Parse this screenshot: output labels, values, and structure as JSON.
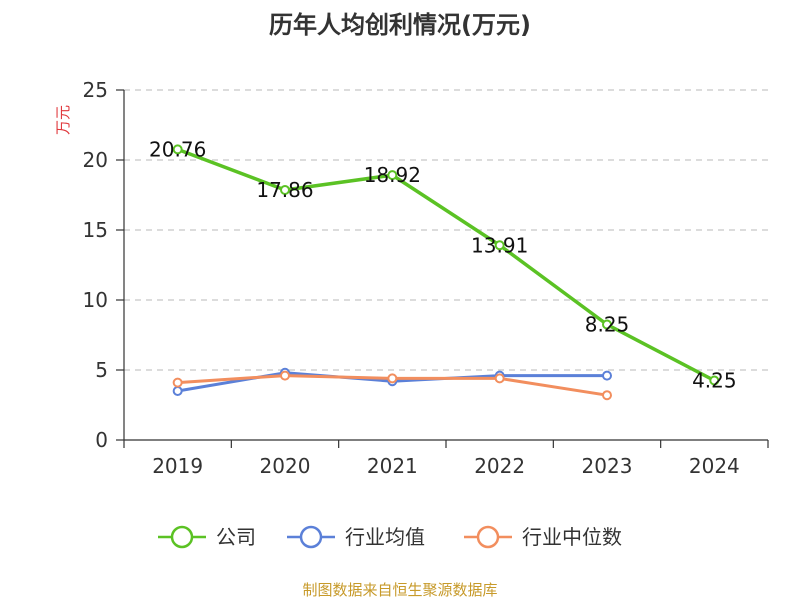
{
  "chart_data": {
    "type": "line",
    "title": "历年人均创利情况(万元)",
    "ylabel": "万元",
    "xlabel": "",
    "categories": [
      "2019",
      "2020",
      "2021",
      "2022",
      "2023",
      "2024"
    ],
    "yticks": [
      "0",
      "5",
      "10",
      "15",
      "20",
      "25"
    ],
    "ylim": [
      0,
      25
    ],
    "grid": true,
    "legend_position": "bottom",
    "series": [
      {
        "name": "公司",
        "color": "#5bc224",
        "values": [
          20.76,
          17.86,
          18.92,
          13.91,
          8.25,
          4.25
        ],
        "labels": [
          "20.76",
          "17.86",
          "18.92",
          "13.91",
          "8.25",
          "4.25"
        ]
      },
      {
        "name": "行业均值",
        "color": "#5b80d8",
        "values": [
          3.5,
          4.8,
          4.2,
          4.6,
          4.6,
          null
        ]
      },
      {
        "name": "行业中位数",
        "color": "#f28e5e",
        "values": [
          4.1,
          4.6,
          4.4,
          4.4,
          3.2,
          null
        ]
      }
    ]
  },
  "footer": {
    "source": "制图数据来自恒生聚源数据库"
  }
}
